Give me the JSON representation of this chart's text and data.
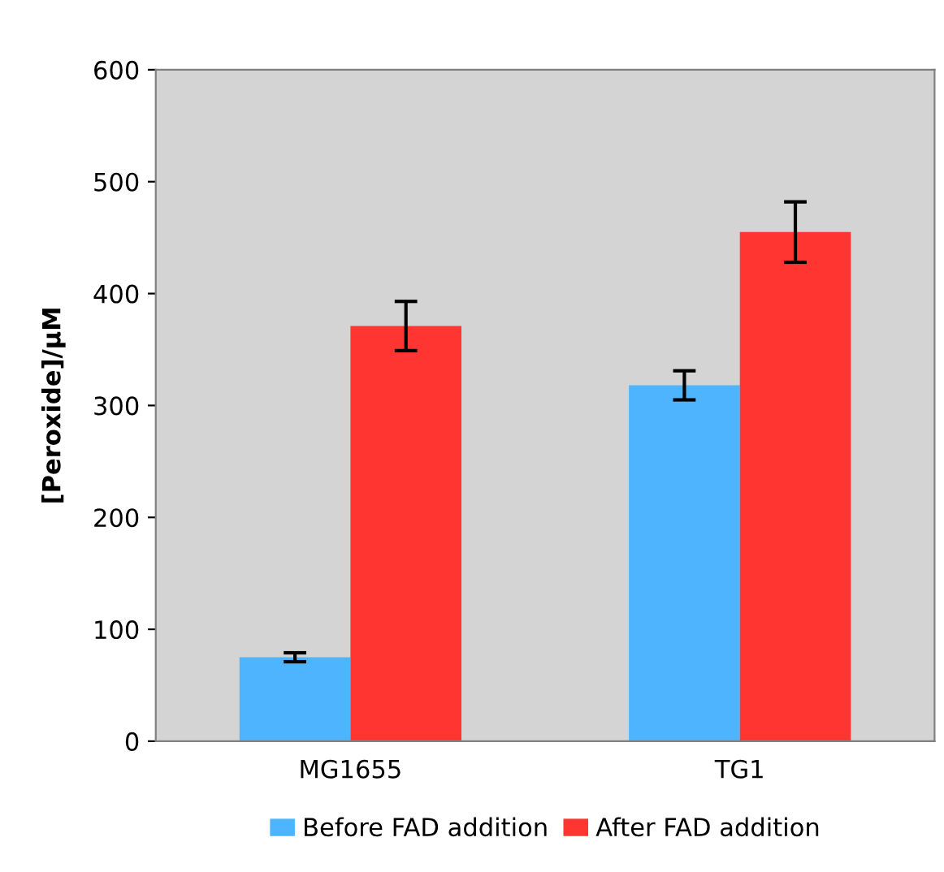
{
  "chart_data": {
    "type": "bar",
    "ylabel": "[Peroxide]/μM",
    "categories": [
      "MG1655",
      "TG1"
    ],
    "series": [
      {
        "name": "Before FAD addition",
        "color": "#4fb4fe",
        "values": [
          75,
          318
        ],
        "errors": [
          4,
          13
        ]
      },
      {
        "name": "After FAD addition",
        "color": "#fe3530",
        "values": [
          371,
          455
        ],
        "errors": [
          22,
          27
        ]
      }
    ],
    "ylim": [
      0,
      600
    ],
    "yticks": [
      0,
      100,
      200,
      300,
      400,
      500,
      600
    ],
    "grid": false,
    "legend": "bottom"
  }
}
